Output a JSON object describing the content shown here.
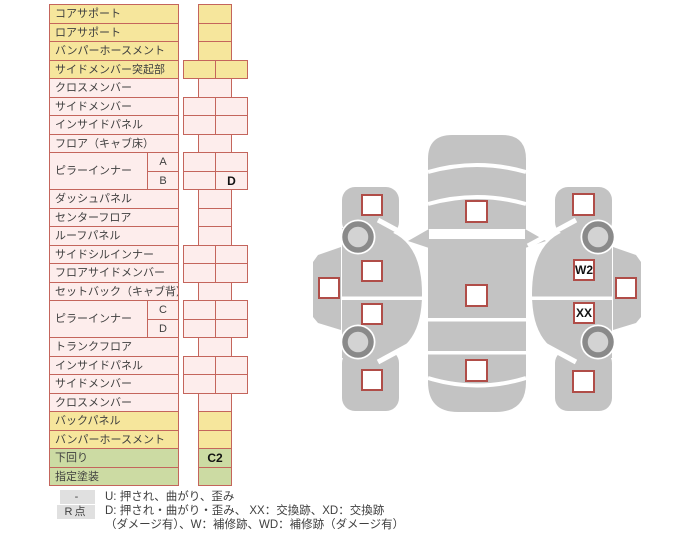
{
  "table": {
    "rows": [
      {
        "label": "コアサポート",
        "color": "yellow",
        "cells": [
          ""
        ]
      },
      {
        "label": "ロアサポート",
        "color": "yellow",
        "cells": [
          ""
        ]
      },
      {
        "label": "バンパーホースメント",
        "color": "yellow",
        "cells": [
          ""
        ]
      },
      {
        "label": "サイドメンバー突起部",
        "color": "yellow",
        "cells": [
          "",
          ""
        ]
      },
      {
        "label": "クロスメンバー",
        "color": "pink",
        "cells": [
          ""
        ]
      },
      {
        "label": "サイドメンバー",
        "color": "pink",
        "cells": [
          "",
          ""
        ]
      },
      {
        "label": "インサイドパネル",
        "color": "pink",
        "cells": [
          "",
          ""
        ]
      },
      {
        "label": "フロア（キャブ床）",
        "color": "pink",
        "cells": [
          ""
        ]
      },
      {
        "label": "ピラーインナー",
        "color": "pink",
        "subrows": [
          {
            "sub": "A",
            "cells": [
              "",
              ""
            ]
          },
          {
            "sub": "B",
            "cells": [
              "",
              "D"
            ]
          }
        ]
      },
      {
        "label": "ダッシュパネル",
        "color": "pink",
        "cells": [
          ""
        ]
      },
      {
        "label": "センターフロア",
        "color": "pink",
        "cells": [
          ""
        ]
      },
      {
        "label": "ルーフパネル",
        "color": "pink",
        "cells": [
          ""
        ]
      },
      {
        "label": "サイドシルインナー",
        "color": "pink",
        "cells": [
          "",
          ""
        ]
      },
      {
        "label": "フロアサイドメンバー",
        "color": "pink",
        "cells": [
          "",
          ""
        ]
      },
      {
        "label": "セットバック（キャブ背）",
        "color": "pink",
        "cells": [
          ""
        ]
      },
      {
        "label": "ピラーインナー",
        "color": "pink",
        "subrows": [
          {
            "sub": "C",
            "cells": [
              "",
              ""
            ]
          },
          {
            "sub": "D",
            "cells": [
              "",
              ""
            ]
          }
        ]
      },
      {
        "label": "トランクフロア",
        "color": "pink",
        "cells": [
          ""
        ]
      },
      {
        "label": "インサイドパネル",
        "color": "pink",
        "cells": [
          "",
          ""
        ]
      },
      {
        "label": "サイドメンバー",
        "color": "pink",
        "cells": [
          "",
          ""
        ]
      },
      {
        "label": "クロスメンバー",
        "color": "pink",
        "cells": [
          ""
        ]
      },
      {
        "label": "バックパネル",
        "color": "yellow",
        "cells": [
          ""
        ]
      },
      {
        "label": "バンパーホースメント",
        "color": "yellow",
        "cells": [
          ""
        ]
      },
      {
        "label": "下回り",
        "color": "green",
        "cells": [
          "C2"
        ]
      },
      {
        "label": "指定塗装",
        "color": "green",
        "cells": [
          ""
        ]
      }
    ]
  },
  "legend": {
    "rows": [
      {
        "badge": "-",
        "lines": [
          "U: 押され、曲がり、歪み"
        ]
      },
      {
        "badge": "R点",
        "lines": [
          "D: 押され・曲がり・歪み、 XX：交換跡、XD：交換跡",
          "（ダメージ有）、W：補修跡、WD：補修跡（ダメージ有）"
        ]
      }
    ]
  },
  "diagram": {
    "left_side": {
      "front_fender": "",
      "roof": "",
      "front_door": "",
      "rear_door": "",
      "rear_fender": ""
    },
    "top": {
      "hood": "",
      "roof": "",
      "trunk": ""
    },
    "right_side": {
      "front_fender": "",
      "roof": "",
      "front_door": "W2",
      "rear_door": "XX",
      "rear_fender": ""
    }
  },
  "colors": {
    "row_yellow": "#f6e69c",
    "row_pink": "#fdedec",
    "row_green": "#ccdba3",
    "cell_border": "#c4655c",
    "mark_text": "#111111",
    "car_body_gray": "#c3c3c3",
    "wheel_ring": "#8a8a8a",
    "wheel_hub": "#d3d3d3",
    "marker_border": "#b04d48",
    "legend_badge_bg": "#e0e0e0",
    "text": "#3f3f3f"
  }
}
